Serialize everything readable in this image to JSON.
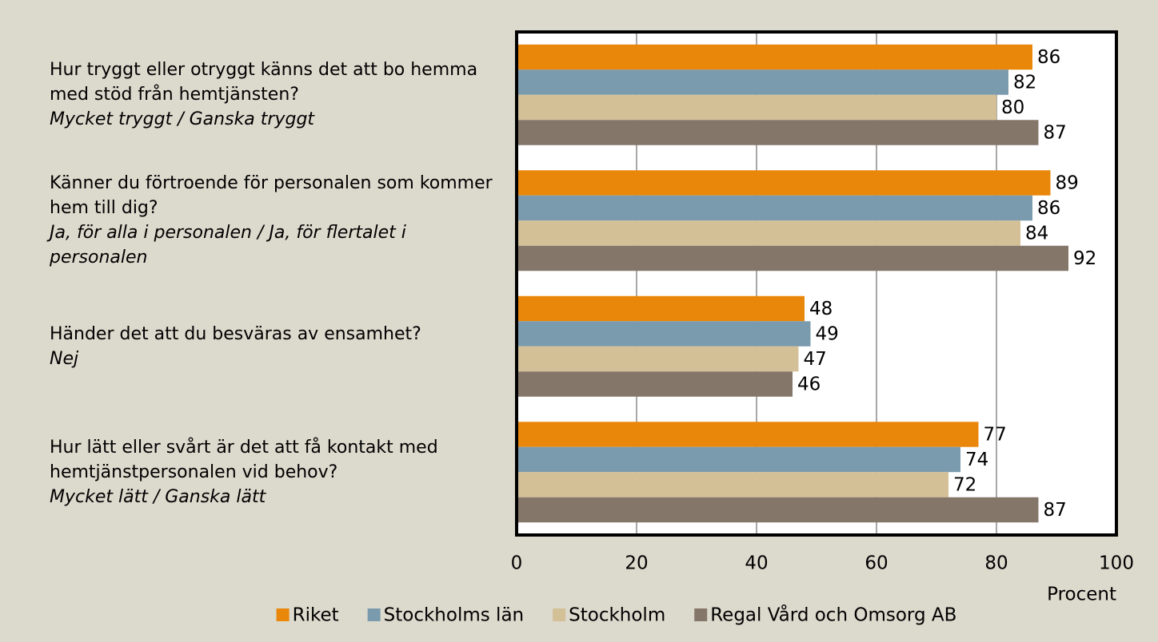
{
  "chart_data": {
    "type": "barh",
    "categories": [
      "Hur tryggt eller otryggt känns det att bo hemma med stöd från hemtjänsten?",
      "Känner du förtroende för personalen som kommer hem till dig?",
      "Händer det att du besväras av ensamhet?",
      "Hur lätt eller svårt är det att få kontakt med hemtjänstpersonalen vid behov?"
    ],
    "category_notes": [
      "Mycket tryggt / Ganska tryggt",
      "Ja, för alla i personalen / Ja, för flertalet i personalen",
      "Nej",
      "Mycket lätt / Ganska lätt"
    ],
    "series": [
      {
        "name": "Riket",
        "color": "#e8870a",
        "values": [
          86,
          89,
          48,
          77
        ]
      },
      {
        "name": "Stockholms län",
        "color": "#7a9aae",
        "values": [
          82,
          86,
          49,
          74
        ]
      },
      {
        "name": "Stockholm",
        "color": "#d4c097",
        "values": [
          80,
          84,
          47,
          72
        ]
      },
      {
        "name": "Regal Vård och Omsorg AB",
        "color": "#85766a",
        "values": [
          87,
          92,
          46,
          87
        ]
      }
    ],
    "xlabel": "Procent",
    "xlim": [
      0,
      100
    ],
    "xticks": [
      0,
      20,
      40,
      60,
      80,
      100
    ],
    "grid": true,
    "legend": "bottom"
  }
}
